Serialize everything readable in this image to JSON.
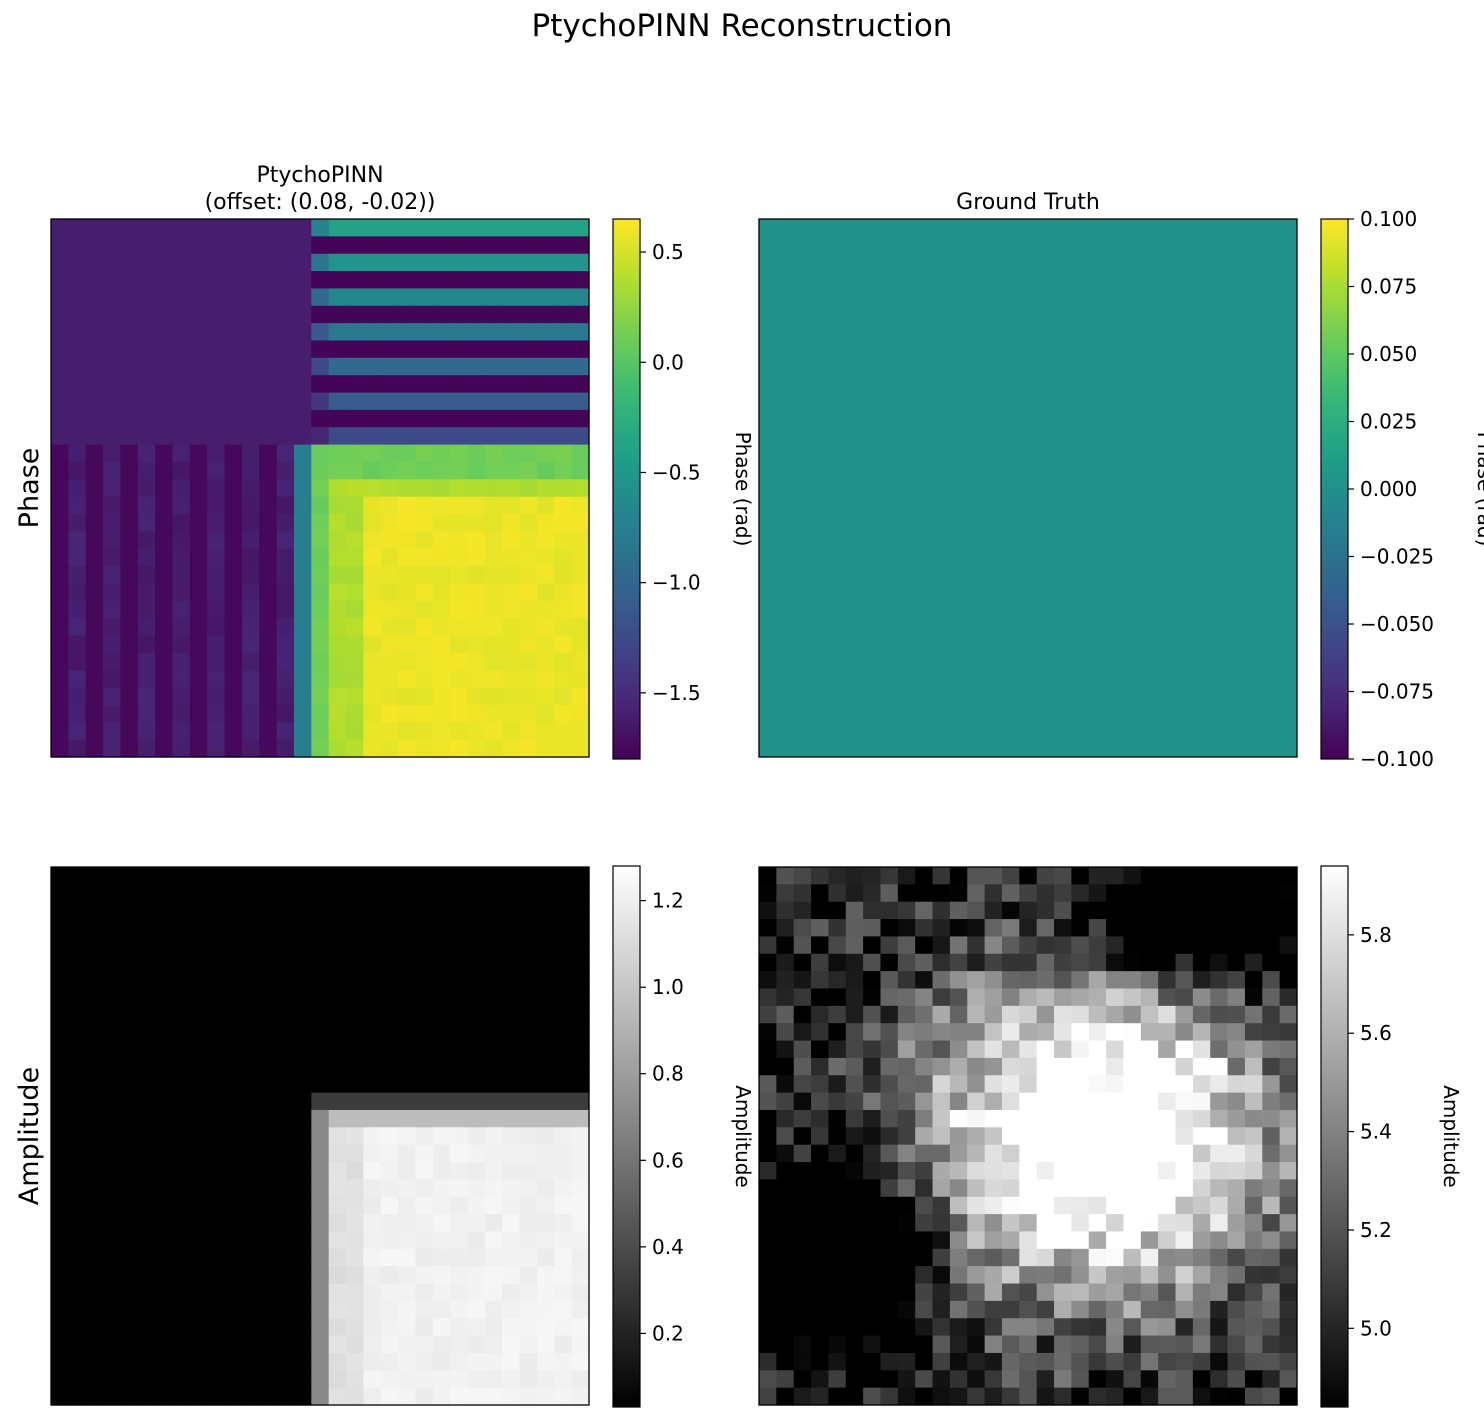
{
  "figure": {
    "title": "PtychoPINN Reconstruction"
  },
  "row_labels": [
    "Phase",
    "Amplitude"
  ],
  "colors": {
    "viridis_min": "#440154",
    "viridis_max": "#fde725",
    "gt_phase_fill": "#21918c",
    "gray_min": "#000000",
    "gray_max": "#ffffff"
  },
  "chart_data": [
    {
      "type": "heatmap",
      "title": "PtychoPINN\n(offset: (0.08, -0.02))",
      "row": "Phase",
      "colormap": "viridis",
      "grid_size": 31,
      "clim": [
        -1.8,
        0.65
      ],
      "colorbar": {
        "label": "Phase (rad)",
        "ticks": [
          0.5,
          0.0,
          -0.5,
          -1.0,
          -1.5
        ],
        "tick_labels": [
          "0.5",
          "0.0",
          "−0.5",
          "−1.0",
          "−1.5"
        ]
      },
      "description_values": {
        "top_left_block": -1.6,
        "bottom_right_block": 0.62,
        "stripe_low": -1.78
      }
    },
    {
      "type": "heatmap",
      "title": "Ground Truth",
      "row": "Phase",
      "colormap": "viridis",
      "clim": [
        -0.1,
        0.1
      ],
      "uniform_value": 0.0,
      "colorbar": {
        "label": "Phase (rad)",
        "ticks": [
          0.1,
          0.075,
          0.05,
          0.025,
          0.0,
          -0.025,
          -0.05,
          -0.075,
          -0.1
        ],
        "tick_labels": [
          "0.100",
          "0.075",
          "0.050",
          "0.025",
          "0.000",
          "−0.025",
          "−0.050",
          "−0.075",
          "−0.100"
        ]
      }
    },
    {
      "type": "heatmap",
      "title": "",
      "row": "Amplitude",
      "colormap": "gray",
      "grid_size": 31,
      "clim": [
        0.03,
        1.28
      ],
      "colorbar": {
        "label": "Amplitude",
        "ticks": [
          1.2,
          1.0,
          0.8,
          0.6,
          0.4,
          0.2
        ],
        "tick_labels": [
          "1.2",
          "1.0",
          "0.8",
          "0.6",
          "0.4",
          "0.2"
        ]
      }
    },
    {
      "type": "heatmap",
      "title": "",
      "row": "Amplitude",
      "colormap": "gray",
      "grid_size": 31,
      "clim": [
        4.84,
        5.94
      ],
      "colorbar": {
        "label": "Amplitude",
        "ticks": [
          5.8,
          5.6,
          5.4,
          5.2,
          5.0
        ],
        "tick_labels": [
          "5.8",
          "5.6",
          "5.4",
          "5.2",
          "5.0"
        ]
      }
    }
  ]
}
